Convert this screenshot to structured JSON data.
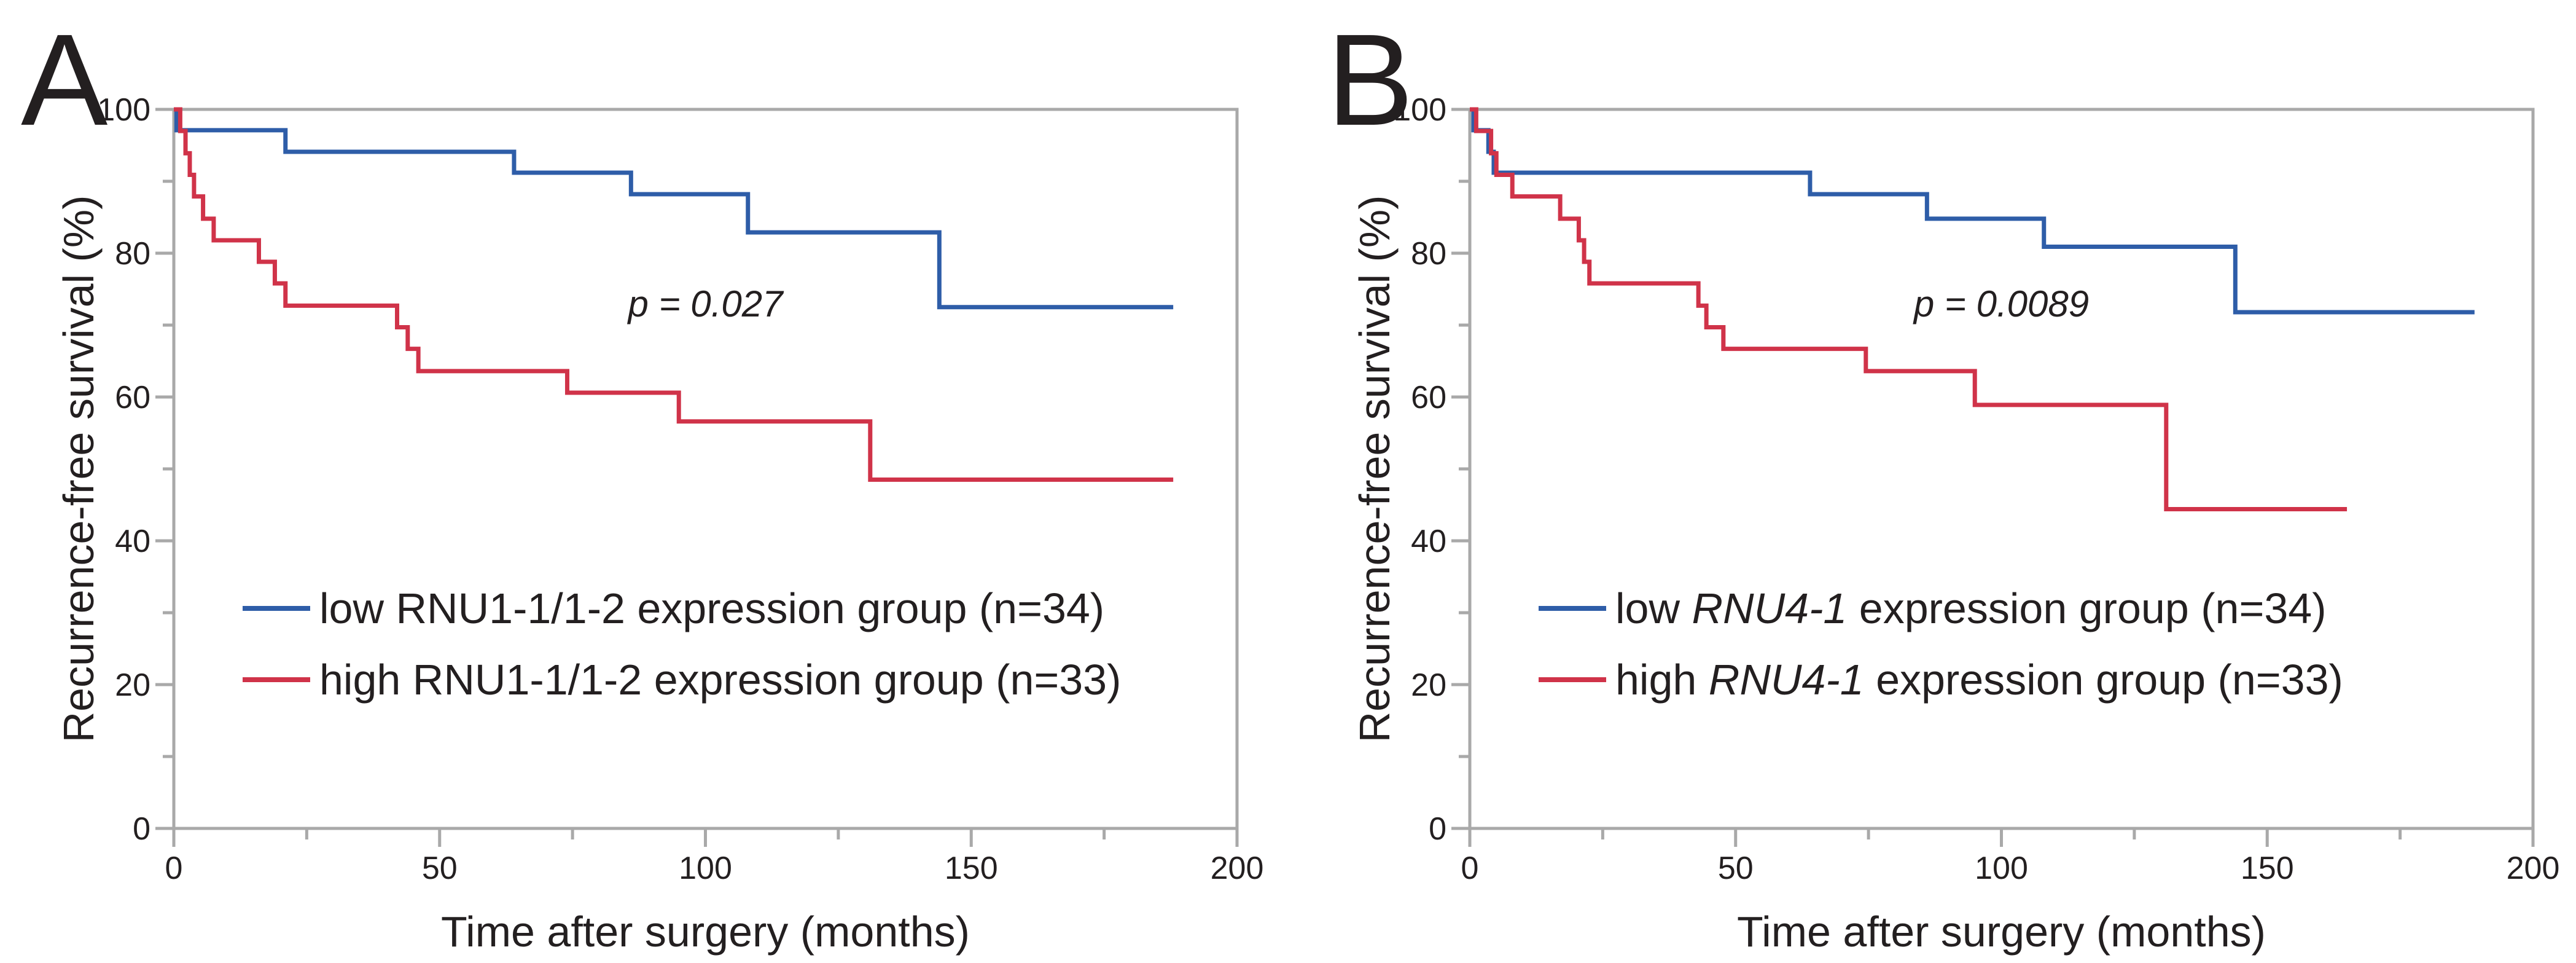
{
  "figure": {
    "background": "#ffffff",
    "frame_color": "#a9a9a9",
    "text_color": "#231f20"
  },
  "chart_data": [
    {
      "type": "line",
      "subtype": "kaplan-meier-step",
      "panel_label": "A",
      "xlabel": "Time after surgery (months)",
      "ylabel": "Recurrence-free survival (%)",
      "xlim": [
        0,
        200
      ],
      "ylim": [
        0,
        100
      ],
      "xticks": [
        0,
        50,
        100,
        150,
        200
      ],
      "xticks_minor": [
        25,
        75,
        125,
        175
      ],
      "yticks": [
        0,
        20,
        40,
        60,
        80,
        100
      ],
      "yticks_minor": [
        10,
        30,
        50,
        70,
        90
      ],
      "grid": "off",
      "legend_position": "lower-left-inside",
      "p_label": "p = 0.027",
      "p_position": {
        "t": 100,
        "s": 73
      },
      "series": [
        {
          "name": "low RNU1-1/1-2 expression group (n=34)",
          "label_parts": [
            {
              "text": "low RNU1-1/1-2 expression group (n=34)",
              "italic": false
            }
          ],
          "color": "#2e5da8",
          "n": 34,
          "end_t": 188,
          "points": [
            [
              0,
              100
            ],
            [
              0.5,
              97.1
            ],
            [
              21,
              94.1
            ],
            [
              64,
              91.2
            ],
            [
              86,
              88.2
            ],
            [
              108,
              82.9
            ],
            [
              144,
              72.5
            ]
          ]
        },
        {
          "name": "high RNU1-1/1-2 expression group (n=33)",
          "label_parts": [
            {
              "text": "high RNU1-1/1-2 expression group (n=33)",
              "italic": false
            }
          ],
          "color": "#d03349",
          "n": 33,
          "end_t": 188,
          "points": [
            [
              0,
              100
            ],
            [
              1.2,
              97.0
            ],
            [
              2.2,
              93.9
            ],
            [
              3.0,
              90.9
            ],
            [
              3.8,
              87.9
            ],
            [
              5.5,
              84.8
            ],
            [
              7.5,
              81.8
            ],
            [
              16,
              78.8
            ],
            [
              19,
              75.8
            ],
            [
              21,
              72.7
            ],
            [
              42,
              69.7
            ],
            [
              44,
              66.7
            ],
            [
              46,
              63.6
            ],
            [
              74,
              60.6
            ],
            [
              95,
              56.6
            ],
            [
              131,
              48.5
            ]
          ]
        }
      ]
    },
    {
      "type": "line",
      "subtype": "kaplan-meier-step",
      "panel_label": "B",
      "xlabel": "Time after surgery (months)",
      "ylabel": "Recurrence-free survival (%)",
      "xlim": [
        0,
        200
      ],
      "ylim": [
        0,
        100
      ],
      "xticks": [
        0,
        50,
        100,
        150,
        200
      ],
      "xticks_minor": [
        25,
        75,
        125,
        175
      ],
      "yticks": [
        0,
        20,
        40,
        60,
        80,
        100
      ],
      "yticks_minor": [
        10,
        30,
        50,
        70,
        90
      ],
      "grid": "off",
      "legend_position": "lower-left-inside",
      "p_label": "p = 0.0089",
      "p_position": {
        "t": 100,
        "s": 73
      },
      "series": [
        {
          "name": "low RNU4-1 expression group (n=34)",
          "label_parts": [
            {
              "text": "low ",
              "italic": false
            },
            {
              "text": "RNU4-1",
              "italic": true
            },
            {
              "text": " expression group (n=34)",
              "italic": false
            }
          ],
          "color": "#2e5da8",
          "n": 34,
          "end_t": 189,
          "points": [
            [
              0,
              100
            ],
            [
              0.7,
              97.1
            ],
            [
              3.5,
              94.1
            ],
            [
              4.5,
              91.2
            ],
            [
              64,
              88.2
            ],
            [
              86,
              84.8
            ],
            [
              108,
              80.9
            ],
            [
              144,
              71.8
            ]
          ]
        },
        {
          "name": "high RNU4-1 expression group (n=33)",
          "label_parts": [
            {
              "text": "high ",
              "italic": false
            },
            {
              "text": "RNU4-1",
              "italic": true
            },
            {
              "text": " expression group (n=33)",
              "italic": false
            }
          ],
          "color": "#d03349",
          "n": 33,
          "end_t": 165,
          "points": [
            [
              0,
              100
            ],
            [
              1.2,
              97.0
            ],
            [
              4,
              93.9
            ],
            [
              5,
              90.9
            ],
            [
              8,
              87.9
            ],
            [
              17,
              84.8
            ],
            [
              20.5,
              81.8
            ],
            [
              21.5,
              78.8
            ],
            [
              22.5,
              75.8
            ],
            [
              43,
              72.7
            ],
            [
              44.5,
              69.7
            ],
            [
              47.7,
              66.7
            ],
            [
              74.5,
              63.6
            ],
            [
              95,
              58.9
            ],
            [
              131,
              44.4
            ]
          ]
        }
      ]
    }
  ]
}
